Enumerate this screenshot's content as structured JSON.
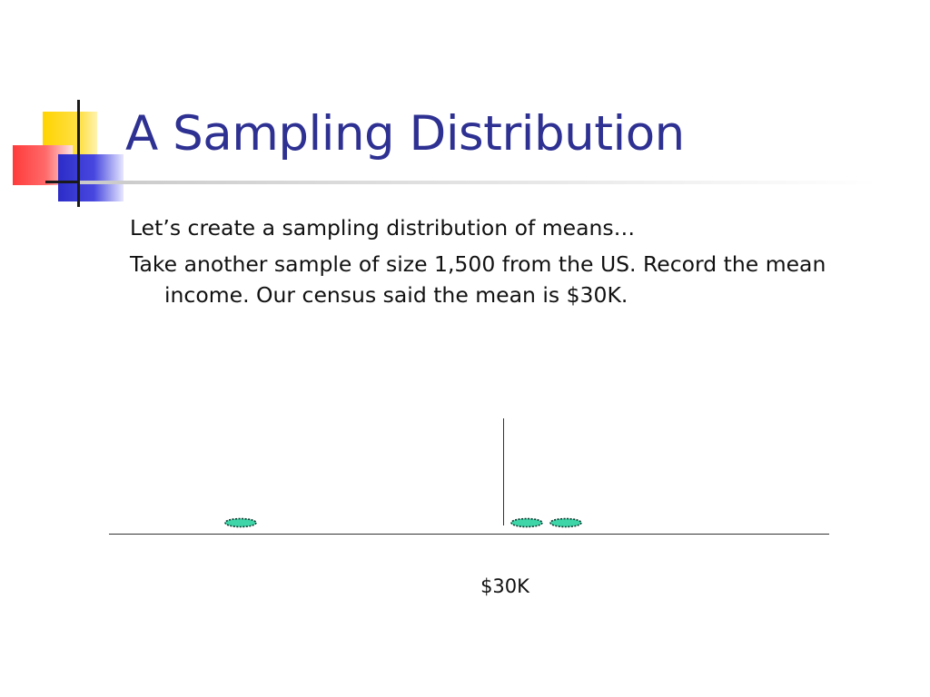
{
  "slide": {
    "title": "A Sampling Distribution",
    "bullets": [
      "Let’s create a sampling distribution of means…",
      "Take another sample of size 1,500 from the US.  Record the mean income.  Our census said the mean is $30K."
    ]
  },
  "diagram": {
    "axis_label": "$30K",
    "marker_color": "#3ed6a8",
    "sample_means_plotted": 3
  }
}
